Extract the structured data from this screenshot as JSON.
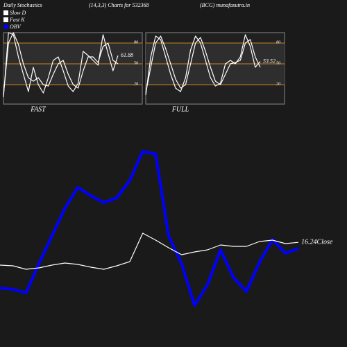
{
  "header": {
    "left": "Daily Stochastics",
    "center": "(14,3,3) Charts for 532368",
    "right": "(BCG) munafasutra.in"
  },
  "chart_data": [
    {
      "type": "line",
      "xlabel": "FAST",
      "ylim": [
        -8,
        95
      ],
      "yticks": [
        80,
        50,
        20
      ],
      "grid_color": "#c8821e",
      "series": [
        {
          "name": "Slow D",
          "color": "#ffffff",
          "values": [
            5,
            80,
            95,
            78,
            50,
            30,
            25,
            30,
            20,
            18,
            35,
            50,
            55,
            35,
            20,
            15,
            40,
            60,
            60,
            52,
            75,
            80,
            55,
            50
          ]
        },
        {
          "name": "Fast K",
          "color": "#ffffff",
          "values": [
            2,
            95,
            92,
            60,
            35,
            10,
            45,
            20,
            8,
            30,
            55,
            60,
            40,
            18,
            10,
            22,
            68,
            62,
            55,
            48,
            92,
            65,
            40,
            61.88
          ]
        }
      ]
    },
    {
      "type": "line",
      "xlabel": "FULL",
      "ylim": [
        -8,
        95
      ],
      "yticks": [
        80,
        50,
        20
      ],
      "grid_color": "#c8821e",
      "series": [
        {
          "color": "#ffffff",
          "values": [
            8,
            45,
            80,
            90,
            72,
            50,
            28,
            15,
            20,
            50,
            80,
            88,
            68,
            45,
            25,
            20,
            35,
            50,
            52,
            55,
            80,
            85,
            60,
            45
          ]
        },
        {
          "color": "#ffffff",
          "values": [
            5,
            60,
            90,
            85,
            60,
            35,
            15,
            10,
            30,
            70,
            90,
            80,
            55,
            30,
            18,
            22,
            50,
            55,
            50,
            60,
            92,
            75,
            45,
            53.52
          ]
        }
      ]
    },
    {
      "type": "line",
      "ylim": [
        9.7,
        23.7
      ],
      "y2lim": [
        0,
        280
      ],
      "series": [
        {
          "name": "OBV",
          "color": "#0000ff",
          "axis": "y2",
          "values": [
            65,
            63,
            58,
            100,
            140,
            180,
            210,
            198,
            188,
            195,
            220,
            262,
            258,
            140,
            100,
            40,
            70,
            120,
            80,
            60,
            102,
            135,
            115,
            122
          ]
        },
        {
          "name": "Close",
          "color": "#ffffff",
          "values": [
            14.6,
            14.55,
            14.3,
            14.4,
            14.6,
            14.75,
            14.65,
            14.45,
            14.3,
            14.55,
            14.85,
            16.9,
            16.4,
            15.85,
            15.35,
            15.55,
            15.7,
            16.05,
            15.95,
            15.95,
            16.3,
            16.4,
            16.15,
            16.24
          ]
        }
      ]
    }
  ]
}
